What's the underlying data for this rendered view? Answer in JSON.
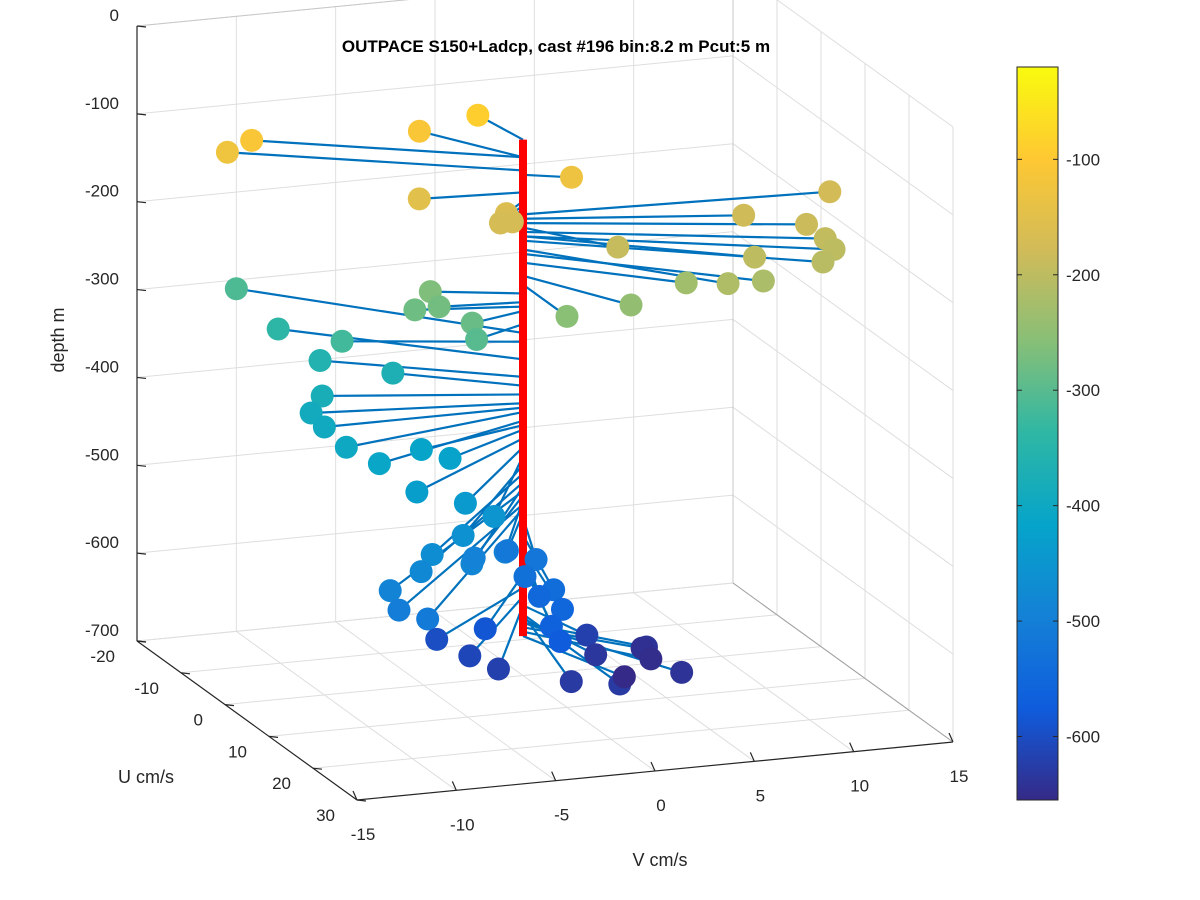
{
  "chart_data": {
    "type": "scatter",
    "title": "OUTPACE S150+Ladcp, cast #196 bin:8.2 m  Pcut:5 m",
    "xlabel": "V cm/s",
    "ylabel": "U cm/s",
    "zlabel": "depth m",
    "v_ticks": [
      "-15",
      "-10",
      "-5",
      "0",
      "5",
      "10",
      "15"
    ],
    "u_ticks": [
      "-20",
      "-10",
      "0",
      "10",
      "20",
      "30"
    ],
    "depth_ticks": [
      "0",
      "-100",
      "-200",
      "-300",
      "-400",
      "-500",
      "-600",
      "-700"
    ],
    "vlim": [
      -15,
      15
    ],
    "ulim": [
      -20,
      30
    ],
    "zlim": [
      -700,
      0
    ],
    "grid": true,
    "colorbar": {
      "ticks": [
        "-100",
        "-200",
        "-300",
        "-400",
        "-500",
        "-600"
      ],
      "range": [
        -655,
        -20
      ],
      "colormap": "parula"
    },
    "colors": {
      "stick": "#0072BD",
      "axis_line": "#FF0000"
    },
    "series": [
      {
        "columns": [
          "depth",
          "u",
          "v"
        ],
        "points": [
          [
            -90,
            -8,
            -0.5
          ],
          [
            -110,
            -10,
            -3
          ],
          [
            -110,
            -12,
            -11
          ],
          [
            -125,
            -13,
            -12
          ],
          [
            -130,
            2,
            2
          ],
          [
            -150,
            -1,
            -5
          ],
          [
            -160,
            3,
            -1.5
          ],
          [
            -165,
            3,
            -1.5
          ],
          [
            -170,
            3,
            -1.2
          ],
          [
            -170,
            3,
            -1.8
          ],
          [
            -175,
            2,
            15
          ],
          [
            -180,
            5,
            10
          ],
          [
            -185,
            8,
            12.5
          ],
          [
            -190,
            8,
            3
          ],
          [
            -195,
            10,
            13
          ],
          [
            -200,
            12,
            13
          ],
          [
            -200,
            12,
            9
          ],
          [
            -205,
            14,
            12
          ],
          [
            -215,
            15,
            7
          ],
          [
            -220,
            14,
            9
          ],
          [
            -230,
            10,
            6
          ],
          [
            -245,
            11,
            3
          ],
          [
            -255,
            10,
            0
          ],
          [
            -265,
            -3,
            -4
          ],
          [
            -275,
            -1,
            -4
          ],
          [
            -280,
            -2,
            -5
          ],
          [
            -285,
            2,
            -3
          ],
          [
            -300,
            3,
            -3
          ],
          [
            -310,
            -20,
            -10
          ],
          [
            -320,
            -5,
            -8
          ],
          [
            -340,
            -15,
            -9
          ],
          [
            -360,
            -10,
            -8
          ],
          [
            -370,
            -7,
            -5
          ],
          [
            -380,
            -5,
            -9
          ],
          [
            -390,
            -3,
            -10
          ],
          [
            -395,
            0,
            -10
          ],
          [
            -400,
            5,
            -10
          ],
          [
            -410,
            8,
            -9
          ],
          [
            -415,
            4,
            -6
          ],
          [
            -420,
            6,
            -5
          ],
          [
            -430,
            12,
            -8
          ],
          [
            -440,
            14,
            -6
          ],
          [
            -450,
            16,
            -5
          ],
          [
            -460,
            18,
            -7
          ],
          [
            -470,
            20,
            -9
          ],
          [
            -480,
            22,
            -10
          ],
          [
            -485,
            20,
            -7
          ],
          [
            -490,
            24,
            -12
          ],
          [
            -495,
            16,
            -6
          ],
          [
            -500,
            14,
            -4
          ],
          [
            -505,
            26,
            -12
          ],
          [
            -510,
            28,
            -11
          ],
          [
            -515,
            10,
            -3
          ],
          [
            -520,
            12,
            -2
          ],
          [
            -530,
            14,
            -3
          ],
          [
            -540,
            16,
            -2
          ],
          [
            -550,
            15,
            -2.5
          ],
          [
            -555,
            18,
            -2
          ],
          [
            -565,
            20,
            -3
          ],
          [
            -575,
            22,
            -3
          ],
          [
            -585,
            14,
            -5
          ],
          [
            -600,
            12,
            -7
          ],
          [
            -610,
            15,
            -6
          ],
          [
            -620,
            17,
            -5
          ],
          [
            -620,
            10,
            1
          ],
          [
            -630,
            20,
            -2
          ],
          [
            -630,
            22,
            0
          ],
          [
            -635,
            12,
            1
          ],
          [
            -640,
            10,
            4
          ],
          [
            -640,
            18,
            4
          ],
          [
            -645,
            9,
            4
          ],
          [
            -650,
            11,
            4
          ],
          [
            -655,
            14,
            2
          ]
        ]
      }
    ]
  }
}
